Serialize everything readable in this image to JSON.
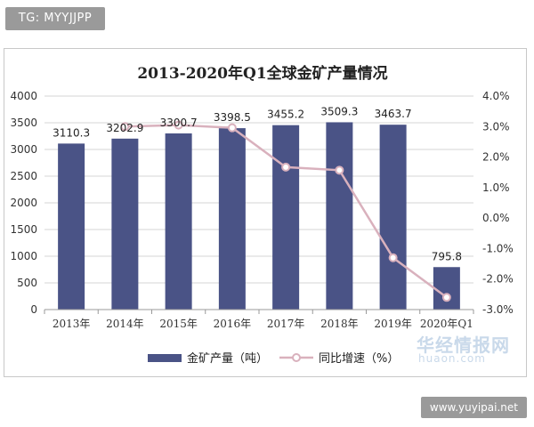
{
  "badge": {
    "text": "TG: MYYJJPP"
  },
  "watermark": {
    "logo_cn": "华经情报网",
    "logo_en": "huaon.com",
    "footer": "www.yuyipai.net"
  },
  "chart_data": {
    "type": "bar",
    "title": "2013-2020年Q1全球金矿产量情况",
    "categories": [
      "2013年",
      "2014年",
      "2015年",
      "2016年",
      "2017年",
      "2018年",
      "2019年",
      "2020年Q1"
    ],
    "series": [
      {
        "name": "金矿产量（吨）",
        "type": "bar",
        "axis": "left",
        "values": [
          3110.3,
          3202.9,
          3300.7,
          3398.5,
          3455.2,
          3509.3,
          3463.7,
          795.8
        ],
        "labels": [
          "3110.3",
          "3202.9",
          "3300.7",
          "3398.5",
          "3455.2",
          "3509.3",
          "3463.7",
          "795.8"
        ]
      },
      {
        "name": "同比增速（%）",
        "type": "line",
        "axis": "right",
        "values": [
          null,
          3.0,
          3.05,
          2.96,
          1.67,
          1.57,
          -1.3,
          -2.6
        ]
      }
    ],
    "y_left": {
      "min": 0,
      "max": 4000,
      "ticks": [
        0,
        500,
        1000,
        1500,
        2000,
        2500,
        3000,
        3500,
        4000
      ],
      "tick_labels": [
        "0",
        "500",
        "1000",
        "1500",
        "2000",
        "2500",
        "3000",
        "3500",
        "4000"
      ]
    },
    "y_right": {
      "min": -3.0,
      "max": 4.0,
      "ticks": [
        -3,
        -2,
        -1,
        0,
        1,
        2,
        3,
        4
      ],
      "tick_labels": [
        "-3.0%",
        "-2.0%",
        "-1.0%",
        "0.0%",
        "1.0%",
        "2.0%",
        "3.0%",
        "4.0%"
      ]
    },
    "grid": true,
    "legend_position": "bottom",
    "colors": {
      "bar": "#4a5386",
      "line": "#d9b1bd",
      "marker": "#ffffff"
    }
  }
}
